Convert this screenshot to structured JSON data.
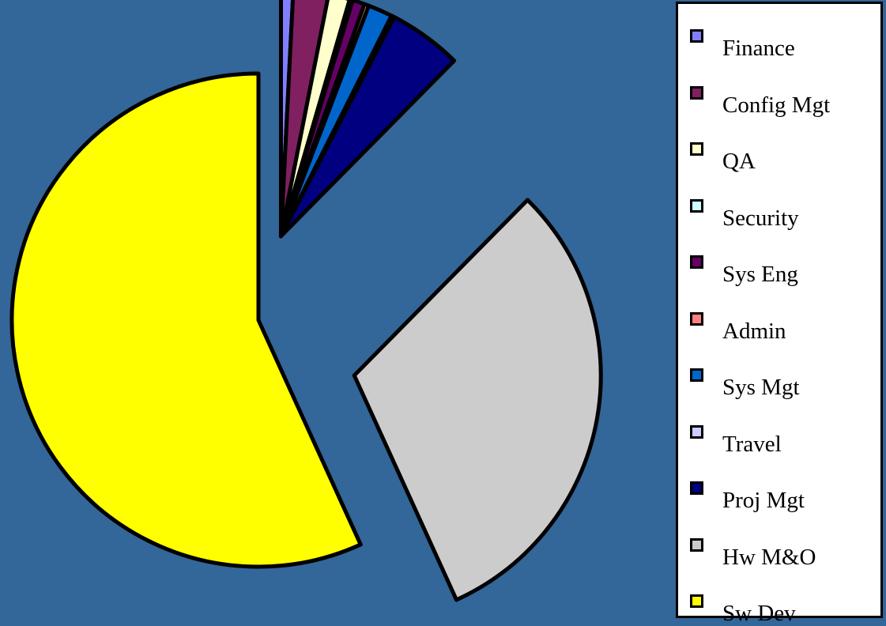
{
  "chart_data": {
    "type": "pie",
    "title": "",
    "exploded": true,
    "border_color": "#000000",
    "background_color": "#336699",
    "legend_position": "right",
    "slices": [
      {
        "label": "Finance",
        "value": 0.8,
        "color": "#8080ff"
      },
      {
        "label": "Config Mgt",
        "value": 2.3,
        "color": "#802060"
      },
      {
        "label": "QA",
        "value": 1.4,
        "color": "#ffffcc"
      },
      {
        "label": "Security",
        "value": 0.2,
        "color": "#ccffff"
      },
      {
        "label": "Sys Eng",
        "value": 0.8,
        "color": "#660066"
      },
      {
        "label": "Admin",
        "value": 0.3,
        "color": "#ff8080"
      },
      {
        "label": "Sys Mgt",
        "value": 1.6,
        "color": "#0066cc"
      },
      {
        "label": "Travel",
        "value": 0.2,
        "color": "#ccccff"
      },
      {
        "label": "Proj Mgt",
        "value": 4.8,
        "color": "#000080"
      },
      {
        "label": "Hw M&O",
        "value": 30.8,
        "color": "#cccccc"
      },
      {
        "label": "Sw Dev",
        "value": 56.8,
        "color": "#ffff00"
      }
    ]
  }
}
